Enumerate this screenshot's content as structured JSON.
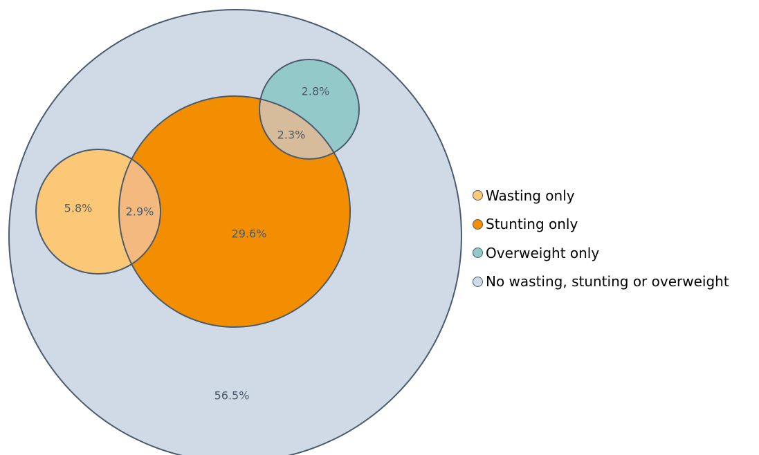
{
  "colors": {
    "outline": "#4a5b6e",
    "wasting": "#fbc878",
    "stunting": "#f28e00",
    "overweight": "#94c9c9",
    "none": "#d0dae6",
    "wasting_stunting_overlap": "#f3b97f",
    "stunting_overweight_overlap": "#d6bc9a"
  },
  "regions": {
    "none": "56.5%",
    "wasting_only": "5.8%",
    "wasting_stunting": "2.9%",
    "stunting_only": "29.6%",
    "stunting_overweight": "2.3%",
    "overweight_only": "2.8%"
  },
  "legend": {
    "items": [
      {
        "label": "Wasting only",
        "color": "#fbc878"
      },
      {
        "label": "Stunting only",
        "color": "#f28e00"
      },
      {
        "label": "Overweight only",
        "color": "#94c9c9"
      },
      {
        "label": "No wasting, stunting or overweight",
        "color": "#d0dae6"
      }
    ]
  }
}
